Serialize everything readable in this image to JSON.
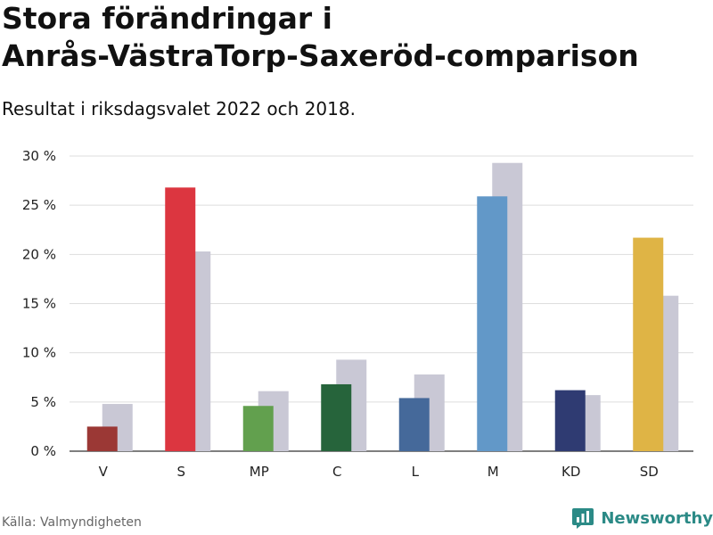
{
  "header": {
    "title_line1": "Stora förändringar i",
    "title_line2": "Anrås-VästraTorp-Saxeröd-comparison",
    "subtitle": "Resultat i riksdagsvalet 2022 och 2018."
  },
  "footer": {
    "source": "Källa: Valmyndigheten",
    "brand": "Newsworthy",
    "brand_color": "#2b8a86"
  },
  "chart_data": {
    "type": "bar",
    "title": "Stora förändringar i Anrås-VästraTorp-Saxeröd-comparison",
    "subtitle": "Resultat i riksdagsvalet 2022 och 2018.",
    "xlabel": "",
    "ylabel": "",
    "ylim": [
      0,
      30
    ],
    "yticks": [
      0,
      5,
      10,
      15,
      20,
      25,
      30
    ],
    "ytick_suffix": " %",
    "grid": true,
    "categories": [
      "V",
      "S",
      "MP",
      "C",
      "L",
      "M",
      "KD",
      "SD"
    ],
    "series": [
      {
        "name": "2022",
        "values": [
          2.5,
          26.8,
          4.6,
          6.8,
          5.4,
          25.9,
          6.2,
          21.7
        ],
        "colors": [
          "#9b3835",
          "#dc3640",
          "#62a04e",
          "#26643b",
          "#45699a",
          "#6298c8",
          "#2f3b72",
          "#dfb445"
        ]
      },
      {
        "name": "2018",
        "values": [
          4.8,
          20.3,
          6.1,
          9.3,
          7.8,
          29.3,
          5.7,
          15.8
        ],
        "color": "#c9c8d5"
      }
    ]
  }
}
